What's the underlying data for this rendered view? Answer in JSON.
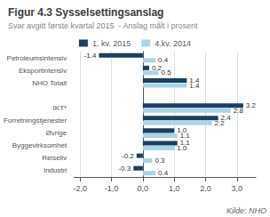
{
  "chart_data": {
    "type": "bar",
    "orientation": "horizontal",
    "title": "Figur 4.3 Sysselsettingsanslag",
    "subtitle": "Svar avgitt første kvartal 2015  - Anslag målt i prosent",
    "annotations": [
      "Kilde: NHO"
    ],
    "categories": [
      "Petroleumsintensiv",
      "Eksportintensiv",
      "NHO Totalt",
      null,
      "IKT*",
      "Forretningstjenester",
      "Øvrige",
      "Byggevirksomhet",
      "Reiseliv",
      "Industri"
    ],
    "series": [
      {
        "name": "1. kv. 2015",
        "color": "#1b3f5e",
        "values": [
          -1.4,
          0.2,
          1.4,
          null,
          3.2,
          2.4,
          1.0,
          1.1,
          -0.2,
          -0.3
        ],
        "value_labels": [
          "-1.4",
          "0.2",
          "1.4",
          null,
          "3.2",
          "2.4",
          "1.0",
          "1.1",
          "-0.2",
          "-0.3"
        ]
      },
      {
        "name": "4.kv. 2014",
        "color": "#aad4e8",
        "values": [
          0.4,
          0.5,
          1.4,
          null,
          2.8,
          2.2,
          1.1,
          1.0,
          0.3,
          0.4
        ],
        "value_labels": [
          "0.4",
          "0.5",
          "1.4",
          null,
          "2.8",
          "2.2",
          "1.1",
          "1.0",
          "0.3",
          "0.4"
        ]
      }
    ],
    "xlim": [
      -2.2,
      3.6
    ],
    "xticks": [
      {
        "value": -2.0,
        "label": "-2,0"
      },
      {
        "value": -1.0,
        "label": "-1,0"
      },
      {
        "value": 0.0,
        "label": "0,0"
      },
      {
        "value": 1.0,
        "label": "1,0"
      },
      {
        "value": 2.0,
        "label": "2,0"
      },
      {
        "value": 3.0,
        "label": "3,0"
      }
    ],
    "grid": true,
    "legend": "top",
    "data_labels": true
  }
}
